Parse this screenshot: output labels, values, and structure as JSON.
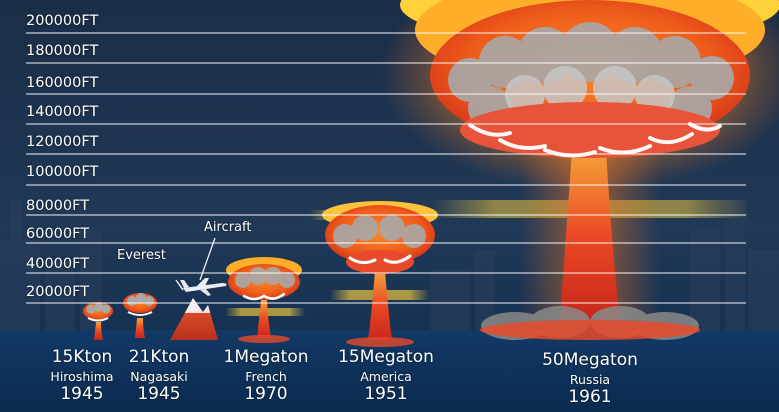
{
  "altitude_labels": [
    "200000FT",
    "180000FT",
    "160000FT",
    "140000FT",
    "120000FT",
    "100000FT",
    "80000FT",
    "60000FT",
    "40000FT",
    "20000FT"
  ],
  "annotations": {
    "everest": "Everest",
    "aircraft": "Aircraft"
  },
  "bombs": [
    {
      "yield": "15Kton",
      "place": "Hiroshima",
      "year": "1945"
    },
    {
      "yield": "21Kton",
      "place": "Nagasaki",
      "year": "1945"
    },
    {
      "yield": "1Megaton",
      "place": "French",
      "year": "1970"
    },
    {
      "yield": "15Megaton",
      "place": "America",
      "year": "1951"
    },
    {
      "yield": "50Megaton",
      "place": "Russia",
      "year": "1961"
    }
  ],
  "colors": {
    "background": "#10233e",
    "cloud_yellow": "#ffd23a",
    "cloud_orange": "#f26b1d",
    "cloud_red": "#d8321a",
    "smoke_grey": "#9a9a9a",
    "grid_line": "#ffffff"
  }
}
